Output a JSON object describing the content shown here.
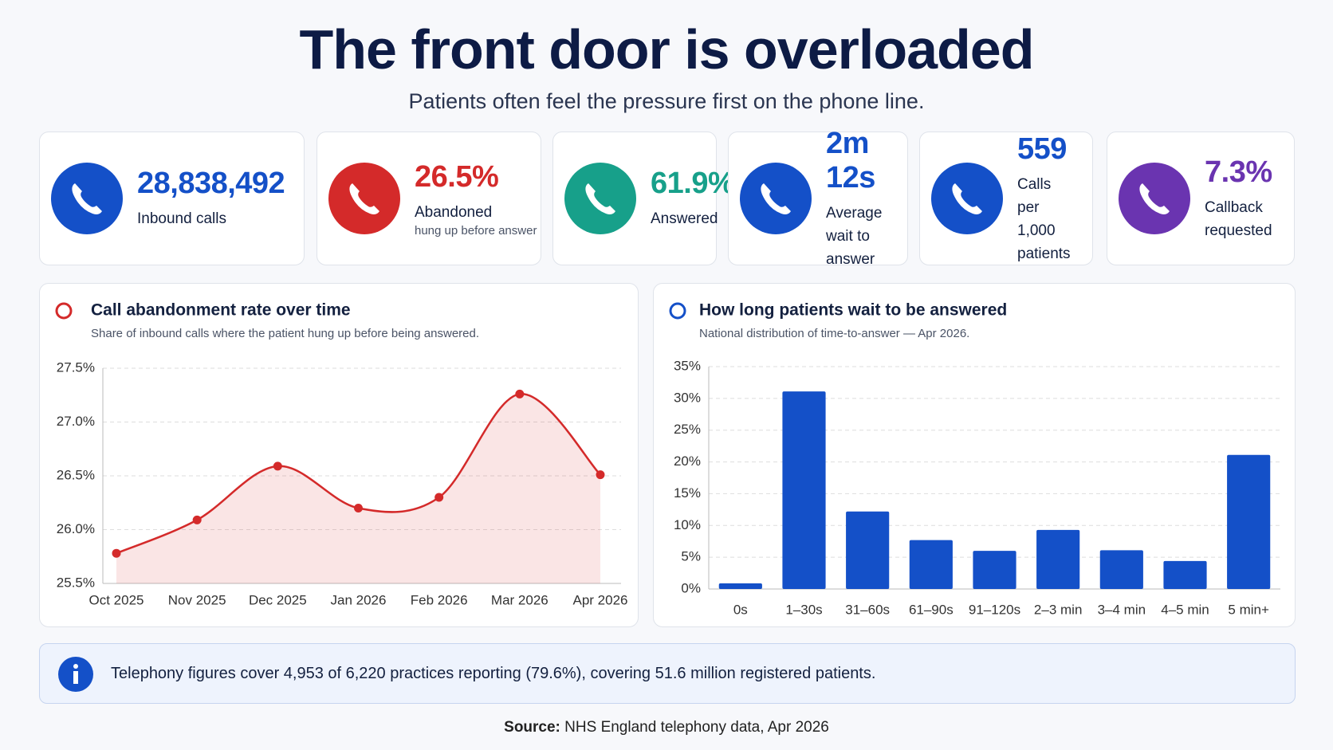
{
  "header": {
    "title": "The front door is overloaded",
    "subtitle": "Patients often feel the pressure first on the phone line."
  },
  "kpis": [
    {
      "value": "28,838,492",
      "label": "Inbound calls",
      "color": "#1450c8"
    },
    {
      "value": "26.5%",
      "label": "Abandoned",
      "sub": "hung up before answer",
      "color": "#d42a2a"
    },
    {
      "value": "61.9%",
      "label": "Answered",
      "color": "#17a08a"
    },
    {
      "value": "2m 12s",
      "label": "Average wait to answer",
      "color": "#1450c8"
    },
    {
      "value": "559",
      "label": "Calls per 1,000 patients",
      "color": "#1450c8"
    },
    {
      "value": "7.3%",
      "label": "Callback requested",
      "color": "#6a34b0"
    }
  ],
  "chart_data": [
    {
      "type": "line",
      "title": "Call abandonment rate over time",
      "subtitle": "Share of inbound calls where the patient hung up before being answered.",
      "color": "#d42a2a",
      "categories": [
        "Oct 2025",
        "Nov 2025",
        "Dec 2025",
        "Jan 2026",
        "Feb 2026",
        "Mar 2026",
        "Apr 2026"
      ],
      "values": [
        25.78,
        26.09,
        26.59,
        26.2,
        26.3,
        27.26,
        26.51
      ],
      "ylim": [
        25.5,
        27.5
      ],
      "yticks": [
        {
          "value": 25.5,
          "label": "25.5%"
        },
        {
          "value": 26,
          "label": "26.0%"
        },
        {
          "value": 26.5,
          "label": "26.5%"
        },
        {
          "value": 27,
          "label": "27.0%"
        },
        {
          "value": 27.5,
          "label": "27.5%"
        }
      ],
      "grid": true
    },
    {
      "type": "bar",
      "title": "How long patients wait to be answered",
      "subtitle": "National distribution of time-to-answer — Apr 2026.",
      "color": "#1450c8",
      "categories": [
        "0s",
        "1–30s",
        "31–60s",
        "61–90s",
        "91–120s",
        "2–3 min",
        "3–4 min",
        "4–5 min",
        "5 min+"
      ],
      "values": [
        0.9,
        31.1,
        12.2,
        7.7,
        6.0,
        9.3,
        6.1,
        4.4,
        21.1
      ],
      "ylim": [
        0,
        35
      ],
      "yticks": [
        {
          "value": 0,
          "label": "0%"
        },
        {
          "value": 5,
          "label": "5%"
        },
        {
          "value": 10,
          "label": "10%"
        },
        {
          "value": 15,
          "label": "15%"
        },
        {
          "value": 20,
          "label": "20%"
        },
        {
          "value": 25,
          "label": "25%"
        },
        {
          "value": 30,
          "label": "30%"
        },
        {
          "value": 35,
          "label": "35%"
        }
      ],
      "grid": true
    }
  ],
  "note": {
    "text": "Telephony figures cover 4,953 of 6,220 practices reporting (79.6%), covering 51.6 million registered patients."
  },
  "source": {
    "label": "Source:",
    "text": "NHS England telephony data, Apr 2026"
  }
}
